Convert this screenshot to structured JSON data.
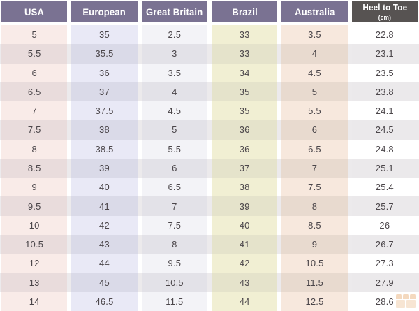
{
  "chart_data": {
    "type": "table",
    "columns": [
      "USA",
      "European",
      "Great Britain",
      "Brazil",
      "Australia",
      "Heel to Toe (cm)"
    ],
    "rows": [
      [
        "5",
        "35",
        "2.5",
        "33",
        "3.5",
        "22.8"
      ],
      [
        "5.5",
        "35.5",
        "3",
        "33",
        "4",
        "23.1"
      ],
      [
        "6",
        "36",
        "3.5",
        "34",
        "4.5",
        "23.5"
      ],
      [
        "6.5",
        "37",
        "4",
        "35",
        "5",
        "23.8"
      ],
      [
        "7",
        "37.5",
        "4.5",
        "35",
        "5.5",
        "24.1"
      ],
      [
        "7.5",
        "38",
        "5",
        "36",
        "6",
        "24.5"
      ],
      [
        "8",
        "38.5",
        "5.5",
        "36",
        "6.5",
        "24.8"
      ],
      [
        "8.5",
        "39",
        "6",
        "37",
        "7",
        "25.1"
      ],
      [
        "9",
        "40",
        "6.5",
        "38",
        "7.5",
        "25.4"
      ],
      [
        "9.5",
        "41",
        "7",
        "39",
        "8",
        "25.7"
      ],
      [
        "10",
        "42",
        "7.5",
        "40",
        "8.5",
        "26"
      ],
      [
        "10.5",
        "43",
        "8",
        "41",
        "9",
        "26.7"
      ],
      [
        "12",
        "44",
        "9.5",
        "42",
        "10.5",
        "27.3"
      ],
      [
        "13",
        "45",
        "10.5",
        "43",
        "11.5",
        "27.9"
      ],
      [
        "14",
        "46.5",
        "11.5",
        "44",
        "12.5",
        "28.6"
      ]
    ],
    "layout": {
      "header_style": "colored-blocks",
      "grid": "banded-rows",
      "legend": "none"
    }
  },
  "table": {
    "text_color": "#4b464a",
    "odd_row_bg": "#ffffff",
    "even_row_bg": "#eceaec",
    "columns": [
      {
        "id": "usa",
        "label": "USA",
        "sublabel": "",
        "header_bg": "#7a7292",
        "header_text": "#ffffff",
        "odd_bg": "#f9ebe8",
        "even_bg": "#e9dcdc"
      },
      {
        "id": "european",
        "label": "European",
        "sublabel": "",
        "header_bg": "#7a7292",
        "header_text": "#ffffff",
        "odd_bg": "#e9e9f6",
        "even_bg": "#dadae8"
      },
      {
        "id": "great-britain",
        "label": "Great Britain",
        "sublabel": "",
        "header_bg": "#7a7292",
        "header_text": "#ffffff",
        "odd_bg": "#f3f3f7",
        "even_bg": "#e3e2e8"
      },
      {
        "id": "brazil",
        "label": "Brazil",
        "sublabel": "",
        "header_bg": "#7a7292",
        "header_text": "#ffffff",
        "odd_bg": "#f1efd3",
        "even_bg": "#e5e3cb"
      },
      {
        "id": "australia",
        "label": "Australia",
        "sublabel": "",
        "header_bg": "#7a7292",
        "header_text": "#ffffff",
        "odd_bg": "#f7e8dd",
        "even_bg": "#e8dacf"
      },
      {
        "id": "heel-to-toe",
        "label": "Heel to Toe",
        "sublabel": "(cm)",
        "header_bg": "#575352",
        "header_text": "#ffffff",
        "odd_bg": "#ffffff",
        "even_bg": "#ebe9eb"
      }
    ],
    "rows": [
      [
        "5",
        "35",
        "2.5",
        "33",
        "3.5",
        "22.8"
      ],
      [
        "5.5",
        "35.5",
        "3",
        "33",
        "4",
        "23.1"
      ],
      [
        "6",
        "36",
        "3.5",
        "34",
        "4.5",
        "23.5"
      ],
      [
        "6.5",
        "37",
        "4",
        "35",
        "5",
        "23.8"
      ],
      [
        "7",
        "37.5",
        "4.5",
        "35",
        "5.5",
        "24.1"
      ],
      [
        "7.5",
        "38",
        "5",
        "36",
        "6",
        "24.5"
      ],
      [
        "8",
        "38.5",
        "5.5",
        "36",
        "6.5",
        "24.8"
      ],
      [
        "8.5",
        "39",
        "6",
        "37",
        "7",
        "25.1"
      ],
      [
        "9",
        "40",
        "6.5",
        "38",
        "7.5",
        "25.4"
      ],
      [
        "9.5",
        "41",
        "7",
        "39",
        "8",
        "25.7"
      ],
      [
        "10",
        "42",
        "7.5",
        "40",
        "8.5",
        "26"
      ],
      [
        "10.5",
        "43",
        "8",
        "41",
        "9",
        "26.7"
      ],
      [
        "12",
        "44",
        "9.5",
        "42",
        "10.5",
        "27.3"
      ],
      [
        "13",
        "45",
        "10.5",
        "43",
        "11.5",
        "27.9"
      ],
      [
        "14",
        "46.5",
        "11.5",
        "44",
        "12.5",
        "28.6"
      ]
    ]
  },
  "watermark": {
    "icon": "shop-grid-icon",
    "color": "#e08c3c"
  }
}
